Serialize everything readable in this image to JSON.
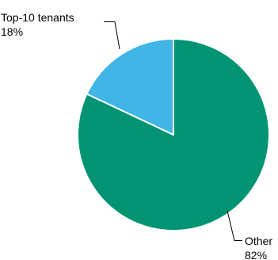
{
  "chart_data": {
    "type": "pie",
    "start_angle_deg": 0,
    "direction": "clockwise",
    "slices": [
      {
        "label": "Other",
        "value": 82,
        "pct_label": "82%",
        "color": "#009473"
      },
      {
        "label": "Top-10 tenants",
        "value": 18,
        "pct_label": "18%",
        "color": "#40b5e6"
      }
    ],
    "legend": "none"
  }
}
